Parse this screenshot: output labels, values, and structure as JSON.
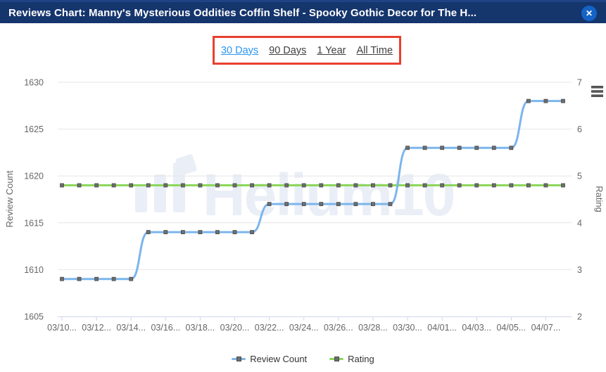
{
  "header": {
    "title": "Reviews Chart: Manny's Mysterious Oddities Coffin Shelf - Spooky Gothic Decor for The H...",
    "close_label": "✕"
  },
  "tabs": {
    "items": [
      {
        "label": "30 Days",
        "active": true
      },
      {
        "label": "90 Days",
        "active": false
      },
      {
        "label": "1 Year",
        "active": false
      },
      {
        "label": "All Time",
        "active": false
      }
    ]
  },
  "watermark": {
    "text": "Helium10"
  },
  "legend": {
    "items": [
      {
        "label": "Review Count",
        "color": "#7cb5ec"
      },
      {
        "label": "Rating",
        "color": "#8cd65c"
      }
    ]
  },
  "colors": {
    "header_bg": "#15356d",
    "close_button_bg": "#1463c6",
    "annotation_border": "#e8402f",
    "active_tab": "#2a96f3",
    "review_count_line": "#7cb5ec",
    "rating_line": "#8cd65c",
    "marker": "#6e6e6e",
    "gridline": "#e6e6e6",
    "axis_line": "#ccd6eb",
    "axis_text": "#666666",
    "watermark": "#eaeef6"
  },
  "chart_data": {
    "type": "line",
    "title": "",
    "x": [
      "03/10",
      "03/11",
      "03/12",
      "03/13",
      "03/14",
      "03/15",
      "03/16",
      "03/17",
      "03/18",
      "03/19",
      "03/20",
      "03/21",
      "03/22",
      "03/23",
      "03/24",
      "03/25",
      "03/26",
      "03/27",
      "03/28",
      "03/29",
      "03/30",
      "03/31",
      "04/01",
      "04/02",
      "04/03",
      "04/04",
      "04/05",
      "04/06",
      "04/07",
      "04/08"
    ],
    "x_tick_labels": [
      "03/10...",
      "03/12...",
      "03/14...",
      "03/16...",
      "03/18...",
      "03/20...",
      "03/22...",
      "03/24...",
      "03/26...",
      "03/28...",
      "03/30...",
      "04/01...",
      "04/03...",
      "04/05...",
      "04/07..."
    ],
    "series": [
      {
        "name": "Review Count",
        "axis": "left",
        "color": "#7cb5ec",
        "values": [
          1609,
          1609,
          1609,
          1609,
          1609,
          1614,
          1614,
          1614,
          1614,
          1614,
          1614,
          1614,
          1617,
          1617,
          1617,
          1617,
          1617,
          1617,
          1617,
          1617,
          1623,
          1623,
          1623,
          1623,
          1623,
          1623,
          1623,
          1628,
          1628,
          1628
        ]
      },
      {
        "name": "Rating",
        "axis": "right",
        "color": "#8cd65c",
        "values": [
          4.8,
          4.8,
          4.8,
          4.8,
          4.8,
          4.8,
          4.8,
          4.8,
          4.8,
          4.8,
          4.8,
          4.8,
          4.8,
          4.8,
          4.8,
          4.8,
          4.8,
          4.8,
          4.8,
          4.8,
          4.8,
          4.8,
          4.8,
          4.8,
          4.8,
          4.8,
          4.8,
          4.8,
          4.8,
          4.8
        ]
      }
    ],
    "left_axis": {
      "title": "Review Count",
      "min": 1605,
      "max": 1630,
      "ticks": [
        1605,
        1610,
        1615,
        1620,
        1625,
        1630
      ]
    },
    "right_axis": {
      "title": "Rating",
      "min": 2,
      "max": 7,
      "ticks": [
        2,
        3,
        4,
        5,
        6,
        7
      ]
    },
    "grid": true,
    "legend_position": "bottom",
    "marker": {
      "shape": "square",
      "color": "#6e6e6e"
    }
  }
}
